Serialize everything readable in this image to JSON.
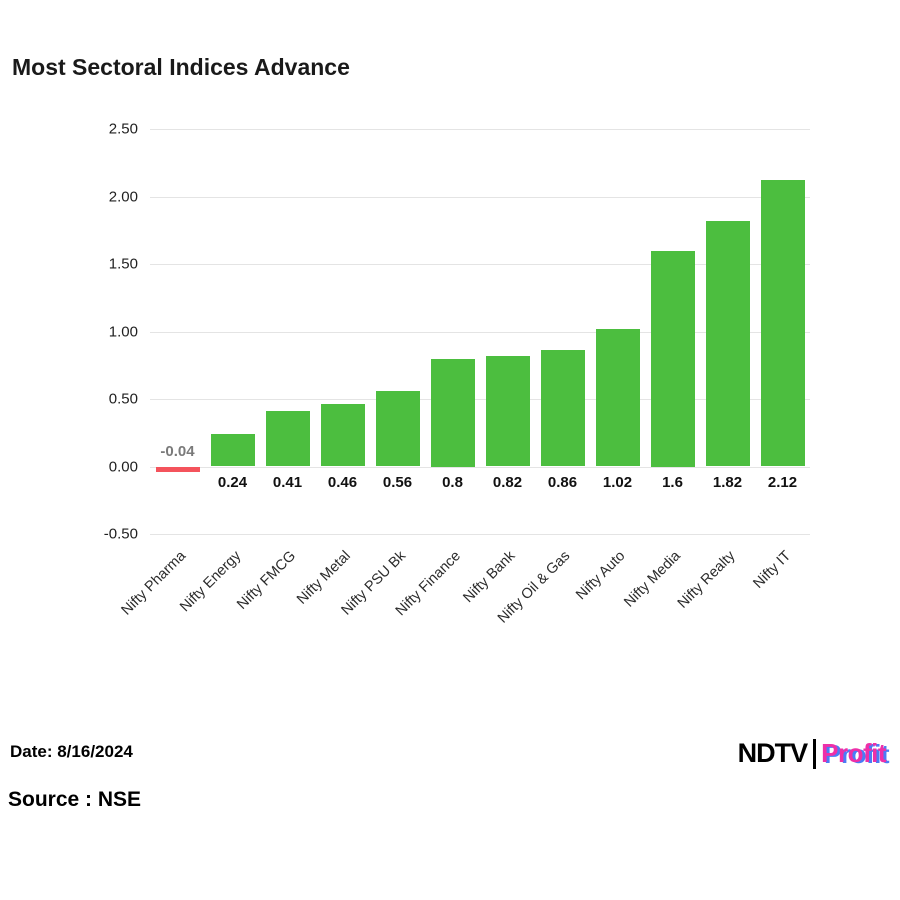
{
  "title": "Most Sectoral Indices Advance",
  "footer": {
    "date": "Date: 8/16/2024",
    "source": "Source : NSE",
    "logo_ndtv": "NDTV",
    "logo_profit": "Profit"
  },
  "colors": {
    "positive_bar": "#4cbe3f",
    "negative_bar": "#f4535c",
    "grid": "#e4e4e4",
    "value_label": "#111111",
    "negative_value_label": "#7a7a7a",
    "profit_pink": "#ee2fa8",
    "profit_blue": "#4a7cf6"
  },
  "chart_data": {
    "type": "bar",
    "title": "Most Sectoral Indices Advance",
    "categories": [
      "Nifty Pharma",
      "Nifty Energy",
      "Nifty FMCG",
      "Nifty Metal",
      "Nifty PSU Bk",
      "Nifty Finance",
      "Nifty Bank",
      "Nifty Oil & Gas",
      "Nifty Auto",
      "Nifty Media",
      "Nifty Realty",
      "Nifty IT"
    ],
    "values": [
      -0.04,
      0.24,
      0.41,
      0.46,
      0.56,
      0.8,
      0.82,
      0.86,
      1.02,
      1.6,
      1.82,
      2.12
    ],
    "value_labels": [
      "-0.04",
      "0.24",
      "0.41",
      "0.46",
      "0.56",
      "0.8",
      "0.82",
      "0.86",
      "1.02",
      "1.6",
      "1.82",
      "2.12"
    ],
    "xlabel": "",
    "ylabel": "",
    "ylim": [
      -0.5,
      2.5
    ],
    "yticks": [
      2.5,
      2.0,
      1.5,
      1.0,
      0.5,
      0.0,
      -0.5
    ],
    "ytick_labels": [
      "2.50",
      "2.00",
      "1.50",
      "1.00",
      "0.50",
      "0.00",
      "-0.50"
    ],
    "grid": true,
    "legend": false
  }
}
